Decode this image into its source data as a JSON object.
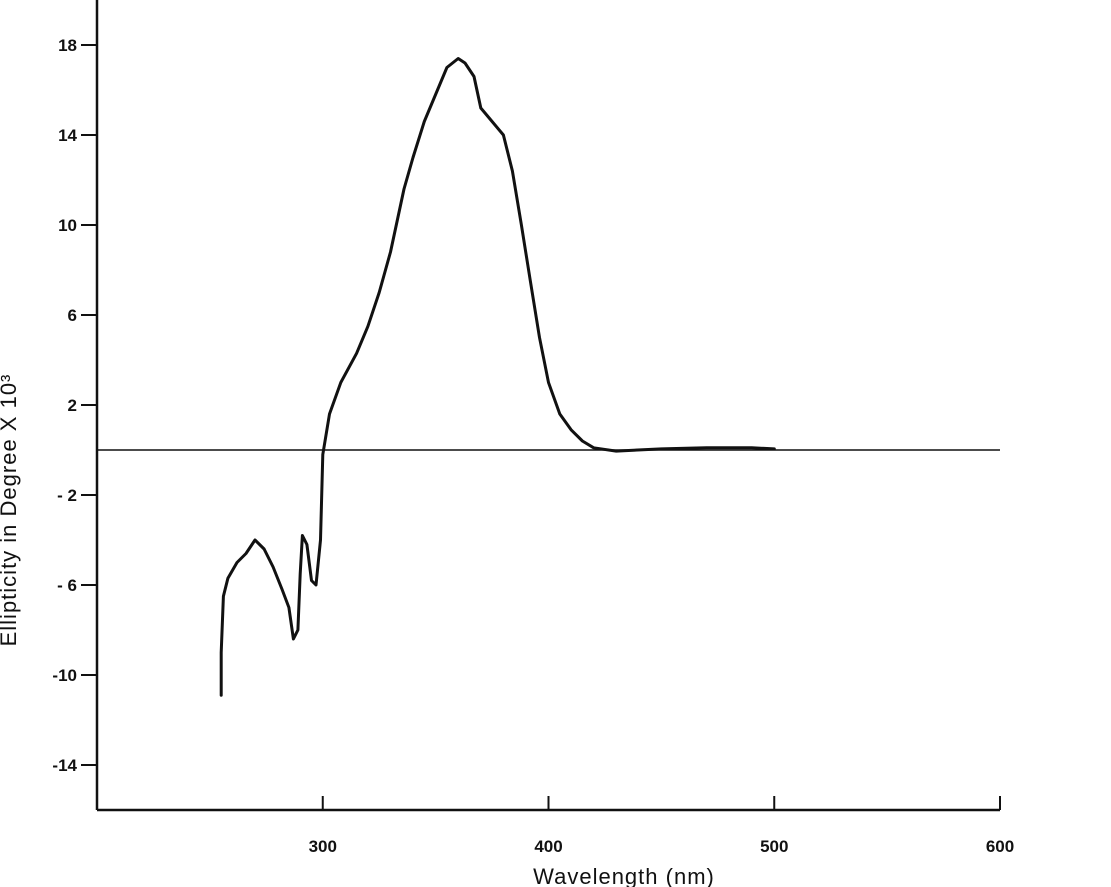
{
  "chart_data": {
    "type": "line",
    "title": "",
    "xlabel": "Wavelength (nm)",
    "ylabel": "Ellipticity in Degree X 10³",
    "xlim": [
      200,
      600
    ],
    "ylim": [
      -16,
      20
    ],
    "x_ticks": [
      300,
      400,
      500,
      600
    ],
    "x_tick_labels": [
      "300",
      "400",
      "500",
      "600"
    ],
    "y_ticks": [
      18,
      14,
      10,
      6,
      2,
      -2,
      -6,
      -10,
      -14
    ],
    "y_tick_labels": [
      "18",
      "14",
      "10",
      "6",
      "2",
      "- 2",
      "- 6",
      "-10",
      "-14"
    ],
    "zero_line": true,
    "grid": false,
    "series": [
      {
        "points": [
          [
            255,
            -10.9
          ],
          [
            255,
            -9.0
          ],
          [
            256,
            -6.5
          ],
          [
            258,
            -5.7
          ],
          [
            262,
            -5.0
          ],
          [
            266,
            -4.6
          ],
          [
            270,
            -4.0
          ],
          [
            274,
            -4.4
          ],
          [
            278,
            -5.2
          ],
          [
            282,
            -6.2
          ],
          [
            285,
            -7.0
          ],
          [
            287,
            -8.4
          ],
          [
            289,
            -8.0
          ],
          [
            290,
            -5.5
          ],
          [
            291,
            -3.8
          ],
          [
            293,
            -4.2
          ],
          [
            295,
            -5.8
          ],
          [
            297,
            -6.0
          ],
          [
            299,
            -4.0
          ],
          [
            300,
            -0.2
          ],
          [
            303,
            1.6
          ],
          [
            308,
            3.0
          ],
          [
            315,
            4.3
          ],
          [
            320,
            5.5
          ],
          [
            325,
            7.0
          ],
          [
            330,
            8.8
          ],
          [
            336,
            11.6
          ],
          [
            340,
            13.0
          ],
          [
            345,
            14.6
          ],
          [
            350,
            15.8
          ],
          [
            355,
            17.0
          ],
          [
            360,
            17.4
          ],
          [
            363,
            17.2
          ],
          [
            367,
            16.6
          ],
          [
            370,
            15.2
          ],
          [
            375,
            14.6
          ],
          [
            380,
            14.0
          ],
          [
            384,
            12.4
          ],
          [
            388,
            10.0
          ],
          [
            392,
            7.5
          ],
          [
            396,
            5.0
          ],
          [
            400,
            3.0
          ],
          [
            405,
            1.6
          ],
          [
            410,
            0.9
          ],
          [
            415,
            0.4
          ],
          [
            420,
            0.1
          ],
          [
            430,
            -0.05
          ],
          [
            450,
            0.05
          ],
          [
            470,
            0.1
          ],
          [
            490,
            0.1
          ],
          [
            500,
            0.05
          ]
        ]
      }
    ]
  }
}
